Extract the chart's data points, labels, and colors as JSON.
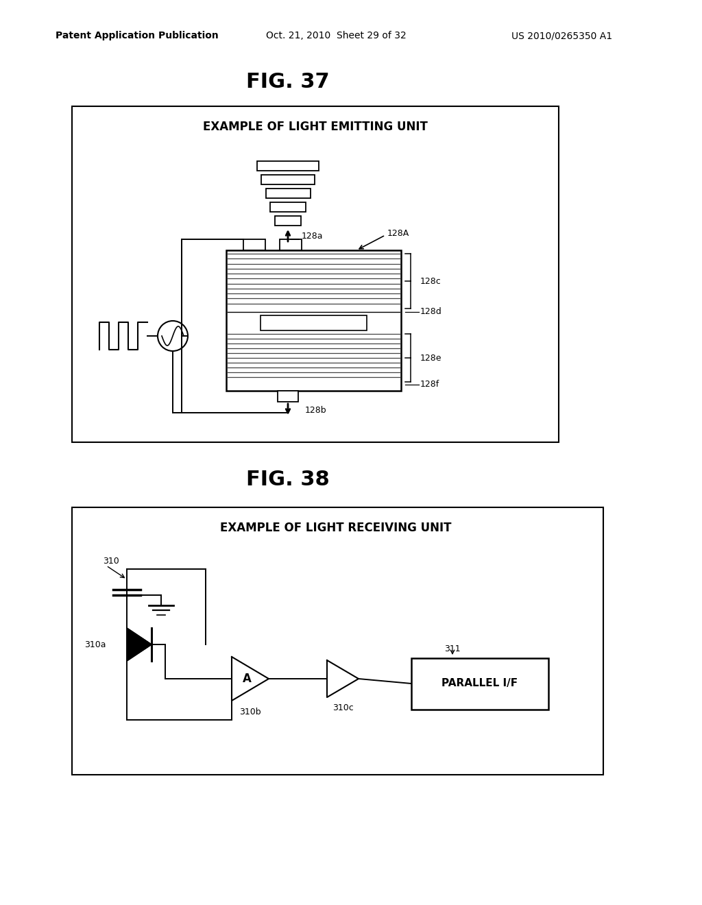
{
  "bg_color": "#ffffff",
  "header_left": "Patent Application Publication",
  "header_center": "Oct. 21, 2010  Sheet 29 of 32",
  "header_right": "US 2010/0265350 A1",
  "fig37_title": "FIG. 37",
  "fig38_title": "FIG. 38",
  "fig37_box_title": "EXAMPLE OF LIGHT EMITTING UNIT",
  "fig38_box_title": "EXAMPLE OF LIGHT RECEIVING UNIT"
}
